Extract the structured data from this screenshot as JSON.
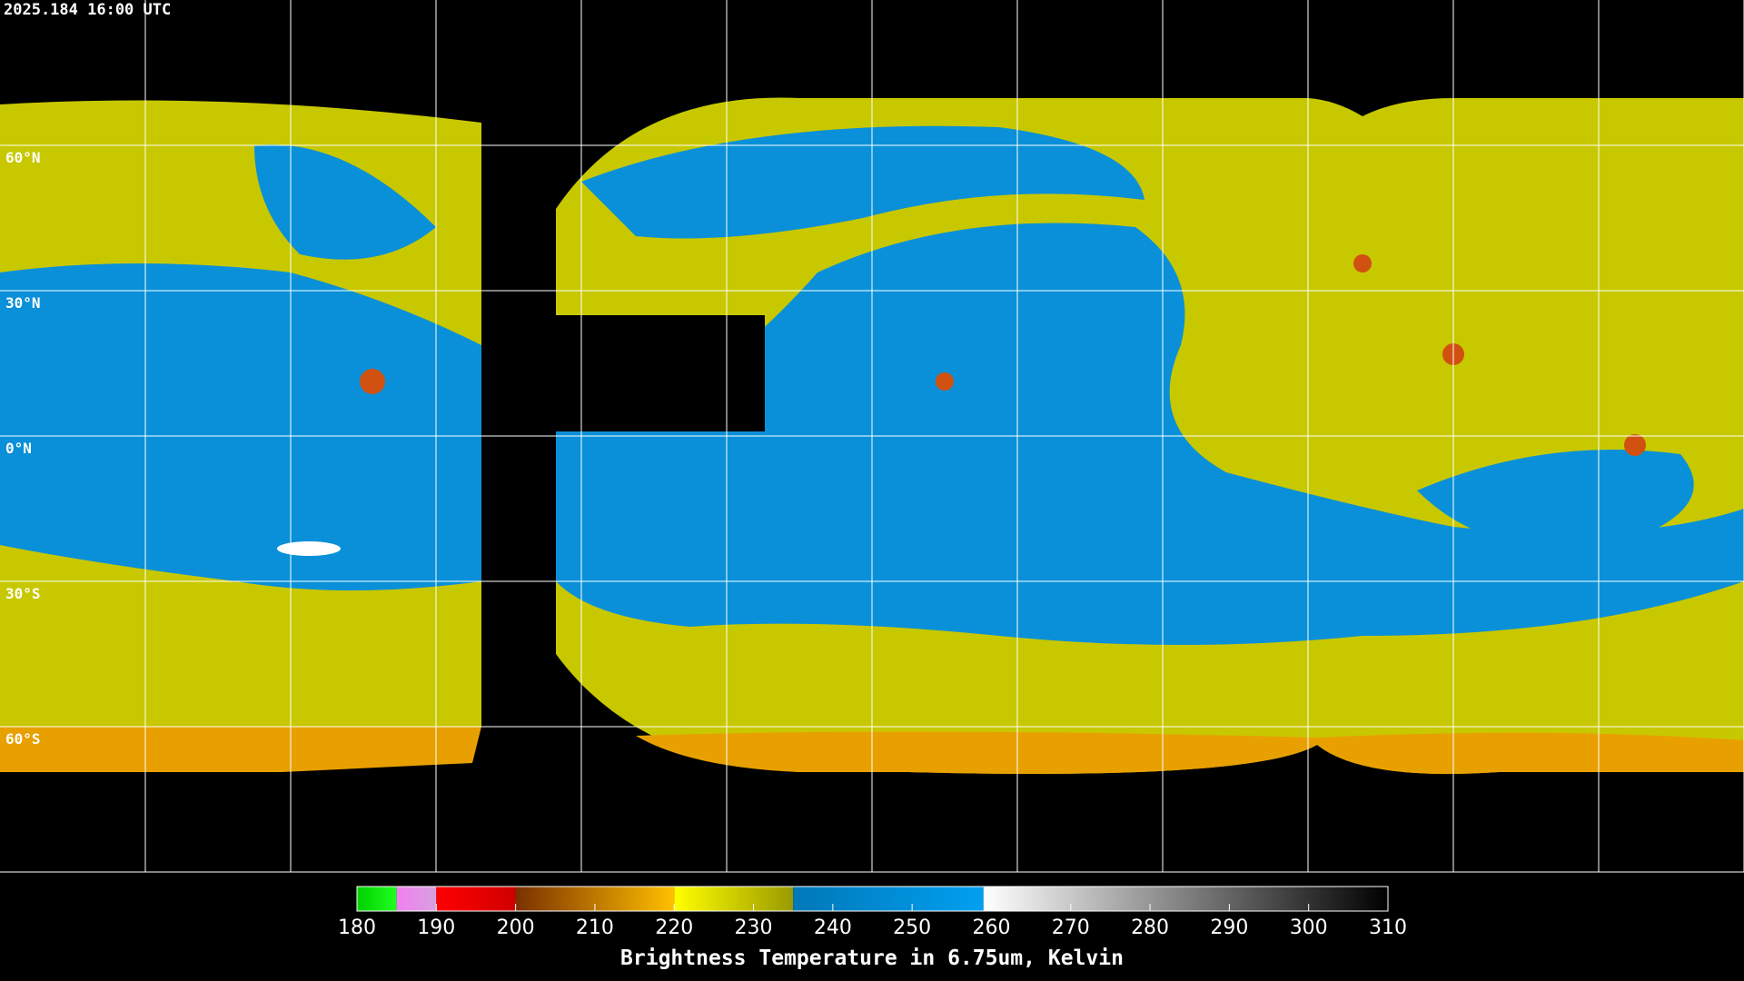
{
  "header": {
    "timestamp": "2025.184 16:00 UTC"
  },
  "map": {
    "lat_labels": [
      {
        "text": "60°N",
        "lat": 60
      },
      {
        "text": "30°N",
        "lat": 30
      },
      {
        "text": "0°N",
        "lat": 0
      },
      {
        "text": "30°S",
        "lat": -30
      },
      {
        "text": "60°S",
        "lat": -60
      }
    ]
  },
  "colorbar": {
    "range": [
      180,
      310
    ],
    "ticks": [
      180,
      190,
      200,
      210,
      220,
      230,
      240,
      250,
      260,
      270,
      280,
      290,
      300,
      310
    ],
    "label": "Brightness Temperature in 6.75um, Kelvin",
    "segments": [
      {
        "from": 180,
        "to": 185,
        "colors": [
          "#00d000",
          "#20ff20"
        ]
      },
      {
        "from": 185,
        "to": 190,
        "colors": [
          "#f080f0",
          "#d8a0e0"
        ]
      },
      {
        "from": 190,
        "to": 200,
        "colors": [
          "#ff0000",
          "#d00000"
        ]
      },
      {
        "from": 200,
        "to": 220,
        "colors": [
          "#7a3000",
          "#ffc000"
        ]
      },
      {
        "from": 220,
        "to": 235,
        "colors": [
          "#ffff00",
          "#9a9a00"
        ]
      },
      {
        "from": 235,
        "to": 259,
        "colors": [
          "#0078b8",
          "#00a0f0"
        ]
      },
      {
        "from": 259,
        "to": 310,
        "colors": [
          "#ffffff",
          "#000000"
        ]
      }
    ]
  }
}
